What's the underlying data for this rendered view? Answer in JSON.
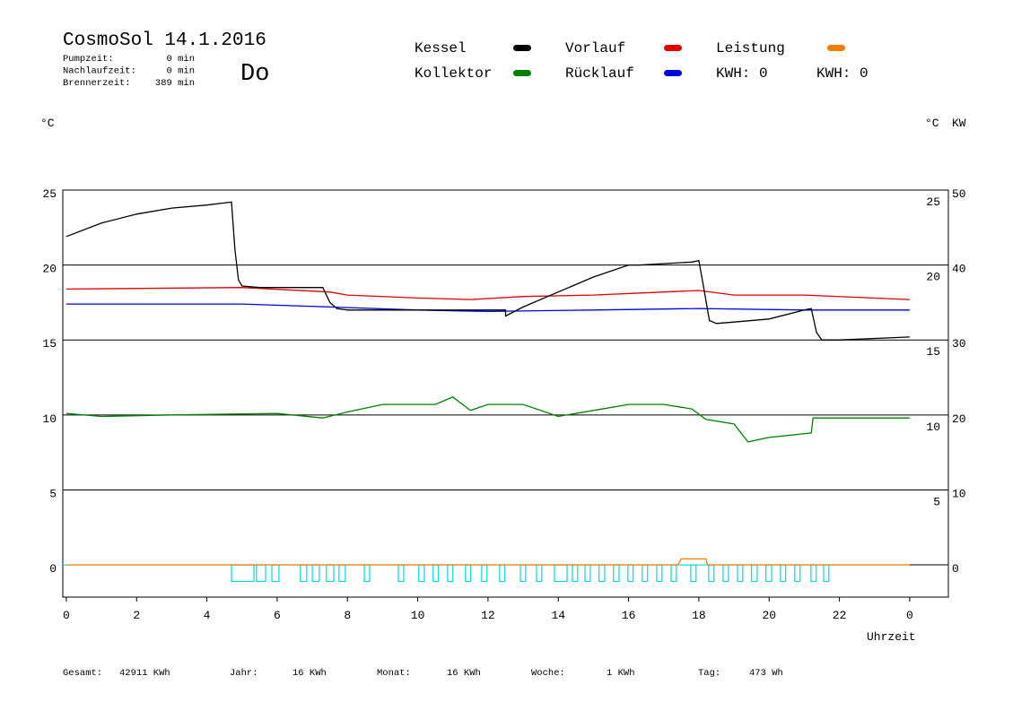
{
  "header": {
    "title": "CosmoSol 14.1.2016",
    "stats": [
      {
        "label": "Pumpzeit:",
        "value": "0 min"
      },
      {
        "label": "Nachlaufzeit:",
        "value": "0 min"
      },
      {
        "label": "Brennerzeit:",
        "value": "389 min"
      }
    ],
    "day": "Do",
    "day_color": "#0000c0"
  },
  "chart_data": {
    "type": "line",
    "xlabel": "Uhrzeit",
    "ylabel": "°C",
    "ylabel_right": "°C",
    "y2label": "KW",
    "y2color": "#e08a00",
    "xlim": [
      -0.1,
      25.1
    ],
    "xticks": [
      0,
      2,
      4,
      6,
      8,
      10,
      12,
      14,
      16,
      18,
      20,
      22,
      {
        "value": 24,
        "label": "0"
      }
    ],
    "ylim": [
      -2.15,
      25
    ],
    "yticks": [
      0,
      5,
      10,
      15,
      20,
      25
    ],
    "y2lim": [
      -4.3,
      50
    ],
    "y2ticks": [
      0,
      10,
      20,
      30,
      40,
      50
    ],
    "grid": true,
    "series": [
      {
        "name": "Kessel",
        "color": "#000000",
        "x": [
          0,
          1,
          2,
          3,
          4,
          4.7,
          4.8,
          4.9,
          5.0,
          5.5,
          7.3,
          7.5,
          7.7,
          8,
          12.5,
          12.5,
          13,
          14,
          15,
          16,
          16.3,
          17.8,
          18.0,
          18.1,
          18.3,
          18.5,
          19,
          20,
          21,
          21.2,
          21.35,
          21.5,
          22,
          23,
          24
        ],
        "values": [
          21.9,
          22.8,
          23.4,
          23.8,
          24.0,
          24.2,
          21,
          19,
          18.6,
          18.5,
          18.5,
          17.5,
          17.1,
          17,
          17,
          16.6,
          17.2,
          18.2,
          19.2,
          20,
          20,
          20.2,
          20.3,
          19,
          16.3,
          16.1,
          16.2,
          16.4,
          17,
          17.1,
          15.5,
          15,
          15,
          15.1,
          15.2
        ]
      },
      {
        "name": "Kollektor",
        "color": "#008000",
        "x": [
          0,
          1,
          3,
          6,
          7.3,
          8,
          9,
          10.5,
          11,
          11.5,
          12,
          13,
          14,
          15,
          16,
          17,
          17.8,
          18.2,
          19,
          19.4,
          20,
          21.2,
          21.25,
          24
        ],
        "values": [
          10.1,
          9.9,
          10.0,
          10.1,
          9.8,
          10.2,
          10.7,
          10.7,
          11.2,
          10.3,
          10.7,
          10.7,
          9.9,
          10.3,
          10.7,
          10.7,
          10.4,
          9.7,
          9.4,
          8.2,
          8.5,
          8.8,
          9.8,
          9.8
        ]
      },
      {
        "name": "Vorlauf",
        "color": "#e00000",
        "x": [
          0,
          5,
          7.5,
          8,
          10,
          11.5,
          13,
          15,
          17,
          18,
          19,
          21,
          24
        ],
        "values": [
          18.4,
          18.5,
          18.2,
          18.0,
          17.8,
          17.7,
          17.9,
          18.0,
          18.2,
          18.3,
          18.0,
          18.0,
          17.7
        ]
      },
      {
        "name": "Rücklauf",
        "color": "#0000e0",
        "x": [
          0,
          5,
          7.5,
          10,
          12,
          15,
          18,
          21,
          24
        ],
        "values": [
          17.4,
          17.4,
          17.2,
          17.0,
          16.9,
          17.0,
          17.1,
          17.0,
          17.0
        ]
      },
      {
        "name": "Leistung",
        "color": "#f08000",
        "axis": "y2",
        "x": [
          0,
          17.4,
          17.5,
          18.2,
          18.25,
          24
        ],
        "values": [
          0,
          0,
          0.8,
          0.8,
          0,
          0
        ]
      },
      {
        "type": "pulse",
        "color": "#00d8e0",
        "x_start": [
          4.7,
          5.41,
          5.85,
          6.66,
          7.0,
          7.4,
          7.76,
          8.48,
          9.45,
          10.03,
          10.44,
          10.85,
          11.36,
          11.82,
          12.33,
          12.92,
          13.38,
          13.89,
          14.4,
          14.76,
          15.16,
          15.57,
          15.98,
          16.39,
          16.8,
          17.21,
          17.77,
          18.28,
          18.69,
          19.1,
          19.5,
          19.91,
          20.32,
          20.73,
          21.19,
          21.55
        ],
        "x_end": [
          5.34,
          5.67,
          6.05,
          6.84,
          7.2,
          7.61,
          7.94,
          8.63,
          9.6,
          10.19,
          10.59,
          11.0,
          11.51,
          11.97,
          12.48,
          13.07,
          13.53,
          14.25,
          14.55,
          14.91,
          15.32,
          15.73,
          16.13,
          16.54,
          16.95,
          17.36,
          17.92,
          18.43,
          18.84,
          19.25,
          19.66,
          20.07,
          20.47,
          20.88,
          21.34,
          21.7
        ],
        "values": [
          -1.1,
          -1.1,
          -1.1,
          -1.1,
          -1.1,
          -1.1,
          -1.1,
          -1.1,
          -1.1,
          -1.1,
          -1.1,
          -1.1,
          -1.1,
          -1.1,
          -1.1,
          -1.1,
          -1.1,
          -1.1,
          -1.1,
          -1.1,
          -1.1,
          -1.1,
          -1.1,
          -1.1,
          -1.1,
          -1.1,
          -1.1,
          -1.1,
          -1.1,
          -1.1,
          -1.1,
          -1.1,
          -1.1,
          -1.1,
          -1.1,
          -1.1
        ]
      }
    ],
    "kwh_labels": [
      {
        "text": "KWH: 0",
        "color": "#e08a00"
      },
      {
        "text": "KWH: 0",
        "color": "#800080"
      }
    ]
  },
  "footer": [
    {
      "label": "Gesamt:",
      "value": "42911 KWh"
    },
    {
      "label": "Jahr:",
      "value": "16 KWh"
    },
    {
      "label": "Monat:",
      "value": "16 KWh"
    },
    {
      "label": "Woche:",
      "value": "1 KWh"
    },
    {
      "label": "Tag:",
      "value": "473 Wh"
    }
  ]
}
